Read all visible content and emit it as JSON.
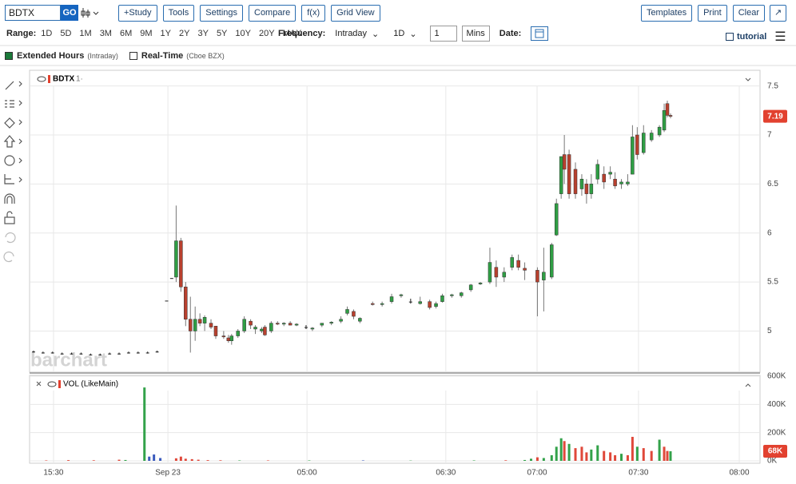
{
  "toolbar": {
    "symbol": "BDTX",
    "go": "GO",
    "buttons": [
      "+Study",
      "Tools",
      "Settings",
      "Compare",
      "f(x)",
      "Grid View"
    ],
    "right_buttons": [
      "Templates",
      "Print",
      "Clear"
    ]
  },
  "range_bar": {
    "range_label": "Range:",
    "ranges": [
      "1D",
      "5D",
      "1M",
      "3M",
      "6M",
      "9M",
      "1Y",
      "2Y",
      "3Y",
      "5Y",
      "10Y",
      "20Y",
      "MAX"
    ],
    "frequency_label": "Frequency:",
    "frequency": "Intraday",
    "period": "1D",
    "interval": "1",
    "interval_unit": "Mins",
    "date_label": "Date:",
    "tutorial": "tutorial"
  },
  "legend": [
    {
      "name": "Extended Hours",
      "note": "(Intraday)",
      "color": "#1b7a3a"
    },
    {
      "name": "Real-Time",
      "note": "(Cboe BZX)",
      "color": "#ffffff"
    }
  ],
  "watermark": "barchart",
  "chart_data": [
    {
      "type": "candlestick",
      "symbol": "BDTX",
      "symbol_note": "1·",
      "up_color": "#2f9e44",
      "down_color": "#b8402e",
      "flat_color": "#222222",
      "xlim": [
        0,
        230
      ],
      "ylim": [
        4.58,
        7.66
      ],
      "yticks": [
        5.0,
        5.5,
        6.0,
        6.5,
        7.0,
        7.5
      ],
      "last_value": 7.19,
      "last_color": "#e2412f",
      "x": [
        1,
        4,
        7,
        10,
        13,
        16,
        19,
        22,
        25,
        28,
        31,
        34,
        37,
        40,
        43,
        44.6,
        46,
        47.5,
        49,
        50.5,
        52,
        53.5,
        55,
        57,
        58.5,
        61,
        62.5,
        63.5,
        65.5,
        67.5,
        69.5,
        71,
        73,
        74,
        76,
        78,
        80,
        82,
        84,
        87,
        89,
        92,
        95,
        98,
        100,
        102,
        104,
        108,
        111,
        114,
        117,
        120,
        123,
        126,
        128,
        130,
        133,
        136,
        139,
        142,
        145,
        147,
        149.5,
        152,
        154,
        156,
        160,
        162,
        164.5,
        166,
        167.5,
        168.5,
        170,
        172,
        174,
        175.5,
        177,
        179,
        181,
        183,
        184.5,
        186.5,
        188.5,
        190,
        191.5,
        193.5,
        196,
        198.5,
        200,
        201,
        202
      ],
      "open": [
        4.79,
        4.78,
        4.78,
        4.77,
        4.77,
        4.77,
        4.76,
        4.76,
        4.77,
        4.77,
        4.78,
        4.78,
        4.78,
        4.79,
        5.31,
        5.54,
        5.55,
        5.92,
        5.45,
        5.12,
        5.0,
        5.12,
        5.08,
        5.08,
        5.05,
        4.95,
        4.93,
        4.9,
        4.95,
        5.0,
        5.1,
        5.02,
        5.0,
        5.04,
        5.0,
        5.08,
        5.07,
        5.08,
        5.06,
        5.04,
        5.02,
        5.06,
        5.08,
        5.1,
        5.18,
        5.2,
        5.1,
        5.28,
        5.27,
        5.3,
        5.36,
        5.3,
        5.28,
        5.3,
        5.25,
        5.3,
        5.36,
        5.36,
        5.42,
        5.48,
        5.5,
        5.65,
        5.55,
        5.65,
        5.72,
        5.64,
        5.62,
        5.52,
        5.55,
        5.98,
        6.4,
        6.8,
        6.8,
        6.65,
        6.45,
        6.5,
        6.4,
        6.55,
        6.6,
        6.6,
        6.55,
        6.5,
        6.5,
        6.6,
        7.0,
        6.82,
        6.95,
        7.0,
        7.05,
        7.32,
        7.2
      ],
      "high": [
        4.8,
        4.79,
        4.79,
        4.78,
        4.78,
        4.78,
        4.77,
        4.77,
        4.78,
        4.78,
        4.79,
        4.79,
        4.79,
        4.8,
        5.31,
        5.54,
        6.28,
        5.95,
        5.5,
        5.35,
        5.25,
        5.18,
        5.16,
        5.12,
        5.05,
        5.0,
        4.96,
        4.97,
        5.02,
        5.15,
        5.12,
        5.06,
        5.04,
        5.06,
        5.1,
        5.1,
        5.09,
        5.1,
        5.08,
        5.06,
        5.04,
        5.08,
        5.1,
        5.15,
        5.25,
        5.22,
        5.14,
        5.3,
        5.3,
        5.38,
        5.38,
        5.33,
        5.35,
        5.32,
        5.3,
        5.38,
        5.38,
        5.4,
        5.48,
        5.5,
        5.85,
        5.72,
        5.65,
        5.78,
        5.78,
        5.7,
        5.65,
        5.85,
        5.9,
        6.35,
        6.78,
        7.0,
        6.85,
        6.72,
        6.6,
        6.55,
        6.6,
        6.75,
        6.68,
        6.68,
        6.62,
        6.55,
        6.6,
        7.1,
        7.08,
        7.1,
        7.05,
        7.1,
        7.32,
        7.35,
        7.22
      ],
      "low": [
        4.78,
        4.77,
        4.77,
        4.76,
        4.76,
        4.76,
        4.75,
        4.75,
        4.76,
        4.76,
        4.77,
        4.77,
        4.77,
        4.78,
        5.31,
        5.54,
        5.5,
        5.4,
        5.05,
        4.78,
        4.9,
        5.05,
        5.0,
        5.02,
        4.92,
        4.92,
        4.88,
        4.86,
        4.93,
        4.98,
        5.02,
        4.97,
        4.98,
        4.95,
        4.98,
        5.06,
        5.05,
        5.06,
        5.05,
        5.02,
        5.0,
        5.04,
        5.06,
        5.08,
        5.16,
        5.12,
        5.08,
        5.26,
        5.25,
        5.28,
        5.34,
        5.28,
        5.27,
        5.22,
        5.23,
        5.29,
        5.34,
        5.34,
        5.4,
        5.47,
        5.48,
        5.45,
        5.5,
        5.62,
        5.62,
        5.52,
        5.15,
        5.2,
        5.53,
        5.97,
        6.35,
        6.5,
        6.35,
        6.35,
        6.38,
        6.3,
        6.35,
        6.5,
        6.45,
        6.55,
        6.45,
        6.45,
        6.48,
        6.6,
        6.75,
        6.8,
        6.93,
        6.98,
        7.03,
        7.18,
        7.17
      ],
      "close": [
        4.79,
        4.78,
        4.78,
        4.77,
        4.77,
        4.77,
        4.76,
        4.76,
        4.77,
        4.77,
        4.78,
        4.78,
        4.78,
        4.79,
        5.31,
        5.54,
        5.92,
        5.45,
        5.12,
        5.0,
        5.12,
        5.08,
        5.14,
        5.04,
        4.95,
        4.94,
        4.9,
        4.95,
        5.0,
        5.12,
        5.06,
        5.04,
        5.02,
        4.96,
        5.08,
        5.07,
        5.08,
        5.06,
        5.07,
        5.04,
        5.03,
        5.08,
        5.09,
        5.12,
        5.22,
        5.15,
        5.13,
        5.27,
        5.28,
        5.35,
        5.37,
        5.3,
        5.3,
        5.24,
        5.28,
        5.36,
        5.37,
        5.39,
        5.47,
        5.49,
        5.7,
        5.55,
        5.6,
        5.75,
        5.65,
        5.62,
        5.5,
        5.6,
        5.88,
        6.3,
        6.78,
        6.65,
        6.4,
        6.4,
        6.55,
        6.4,
        6.5,
        6.7,
        6.52,
        6.62,
        6.48,
        6.52,
        6.52,
        6.98,
        6.8,
        7.02,
        7.02,
        7.08,
        7.25,
        7.2,
        7.19
      ]
    },
    {
      "type": "bar",
      "title": "VOL (LikeMain)",
      "xlim": [
        0,
        230
      ],
      "ylim": [
        0,
        600000
      ],
      "yticks": [
        {
          "value": 0,
          "label": "0K"
        },
        {
          "value": 200000,
          "label": "200K"
        },
        {
          "value": 400000,
          "label": "400K"
        },
        {
          "value": 600000,
          "label": "600K"
        }
      ],
      "xticks": [
        {
          "value": 7.3,
          "label": "15:30"
        },
        {
          "value": 43.4,
          "label": "Sep 23"
        },
        {
          "value": 87.3,
          "label": "05:00"
        },
        {
          "value": 131.1,
          "label": "06:30"
        },
        {
          "value": 159.9,
          "label": "07:00"
        },
        {
          "value": 191.9,
          "label": "07:30"
        },
        {
          "value": 223.7,
          "label": "08:00"
        }
      ],
      "last_value": 68000,
      "last_value_label": "68K",
      "last_color": "#e2412f",
      "x": [
        5,
        12,
        20,
        28,
        30,
        36,
        37.5,
        39,
        41,
        46,
        47.5,
        49,
        51,
        53,
        56,
        60,
        66,
        75,
        88,
        105,
        120,
        140,
        150,
        156,
        158,
        160,
        162,
        164.5,
        166,
        167.5,
        168.5,
        170,
        172,
        174,
        175.5,
        177,
        179,
        181,
        183,
        184.5,
        186.5,
        188.5,
        190,
        191.5,
        193.5,
        196,
        198.5,
        200,
        201,
        202
      ],
      "values": [
        3000,
        5000,
        4000,
        8000,
        6000,
        520000,
        30000,
        45000,
        20000,
        18000,
        30000,
        15000,
        12000,
        8000,
        5000,
        4000,
        3000,
        3000,
        3000,
        3000,
        2000,
        3000,
        4000,
        6000,
        15000,
        25000,
        20000,
        40000,
        100000,
        160000,
        140000,
        120000,
        90000,
        100000,
        60000,
        80000,
        110000,
        70000,
        60000,
        40000,
        50000,
        40000,
        170000,
        100000,
        90000,
        70000,
        150000,
        100000,
        70000,
        68000
      ],
      "colors": [
        "#e0483a",
        "#e0483a",
        "#e0483a",
        "#e0483a",
        "#33a24a",
        "#33a24a",
        "#3b5bbd",
        "#3b5bbd",
        "#3b5bbd",
        "#e0483a",
        "#e0483a",
        "#e0483a",
        "#e0483a",
        "#e0483a",
        "#e0483a",
        "#e0483a",
        "#33a24a",
        "#e0483a",
        "#33a24a",
        "#3b5bbd",
        "#33a24a",
        "#33a24a",
        "#e0483a",
        "#33a24a",
        "#33a24a",
        "#e0483a",
        "#33a24a",
        "#33a24a",
        "#33a24a",
        "#33a24a",
        "#e0483a",
        "#33a24a",
        "#e0483a",
        "#e0483a",
        "#e0483a",
        "#33a24a",
        "#33a24a",
        "#e0483a",
        "#e0483a",
        "#e0483a",
        "#33a24a",
        "#e0483a",
        "#e0483a",
        "#33a24a",
        "#e0483a",
        "#e0483a",
        "#33a24a",
        "#e0483a",
        "#e0483a",
        "#33a24a"
      ]
    }
  ]
}
